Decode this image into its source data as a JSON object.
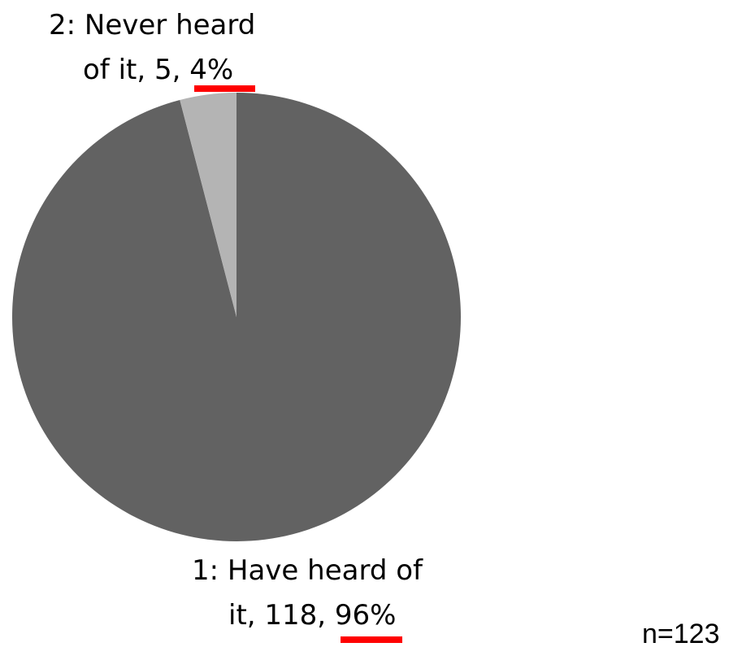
{
  "chart_data": {
    "type": "pie",
    "start": "12 o'clock",
    "direction": "clockwise",
    "slices": [
      {
        "category": "1: Have heard of it",
        "count": 118,
        "percent": "96%",
        "color": "#626262",
        "label_lines": [
          "1: Have heard of",
          "it, 118, "
        ]
      },
      {
        "category": "2: Never heard of it",
        "count": 5,
        "percent": "4%",
        "color": "#b4b4b4",
        "label_lines": [
          "2: Never heard",
          "of it, 5, "
        ]
      }
    ],
    "highlight_color": "#ff0000",
    "note": "n=123"
  }
}
